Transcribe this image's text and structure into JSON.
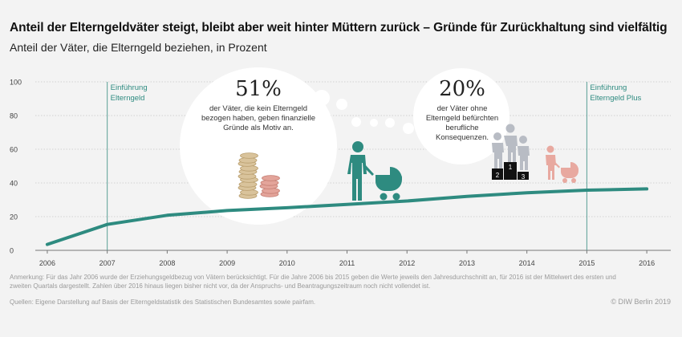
{
  "header": {
    "title": "Anteil der Elterngeldväter steigt, bleibt aber weit hinter Müttern zurück – Gründe für Zurückhaltung sind vielfältig",
    "subtitle": "Anteil der Väter, die Elterngeld beziehen, in Prozent"
  },
  "chart_data": {
    "type": "line",
    "x": [
      2006,
      2007,
      2008,
      2009,
      2010,
      2011,
      2012,
      2013,
      2014,
      2015,
      2016
    ],
    "series": [
      {
        "values": [
          3.5,
          15.4,
          20.8,
          23.6,
          25.3,
          27.3,
          29.3,
          32.0,
          34.2,
          35.7,
          36.5
        ]
      }
    ],
    "xlim": [
      2005.8,
      2016.4
    ],
    "ylim": [
      0,
      100
    ],
    "x_ticks": [
      "2006",
      "2007",
      "2008",
      "2009",
      "2010",
      "2011",
      "2012",
      "2013",
      "2014",
      "2015",
      "2016"
    ],
    "y_ticks": [
      "0",
      "20",
      "40",
      "60",
      "80",
      "100"
    ],
    "grid": true,
    "line_color": "#2e8b80",
    "annotations": [
      {
        "x": 2007,
        "label_line1": "Einführung",
        "label_line2": "Elterngeld"
      },
      {
        "x": 2015,
        "label_line1": "Einführung",
        "label_line2": "Elterngeld Plus"
      }
    ]
  },
  "bubbles": [
    {
      "number": "51%",
      "text": "der Väter, die kein Elterngeld bezogen haben, geben finanzielle Gründe als Motiv an.",
      "icon": "coin-stacks-icon"
    },
    {
      "number": "20%",
      "text": "der Väter ohne Elterngeld befürchten berufliche Konsequenzen.",
      "icon": "podium-icon",
      "podium_labels": [
        "2",
        "1",
        "3"
      ]
    }
  ],
  "footer": {
    "note": "Anmerkung: Für das Jahr 2006 wurde der Erziehungsgeldbezug von Vätern berücksichtigt. Für die Jahre 2006 bis 2015 geben die Werte jeweils den Jahresdurchschnitt an, für 2016 ist der Mittelwert des ersten und zweiten Quartals dargestellt. Zahlen über 2016 hinaus liegen bisher nicht vor, da der Anspruchs- und Beantragungszeitraum noch nicht vollendet ist.",
    "source": "Quellen: Eigene Darstellung auf Basis der Elterngeldstatistik des Statistischen Bundesamtes sowie pairfam.",
    "credit": "© DIW Berlin 2019"
  },
  "colors": {
    "teal": "#2e8b80",
    "grey_figure": "#b8bcc4",
    "pink_figure": "#e8a9a0",
    "coin_beige": "#d9c39b",
    "coin_pink": "#e3a49a"
  }
}
